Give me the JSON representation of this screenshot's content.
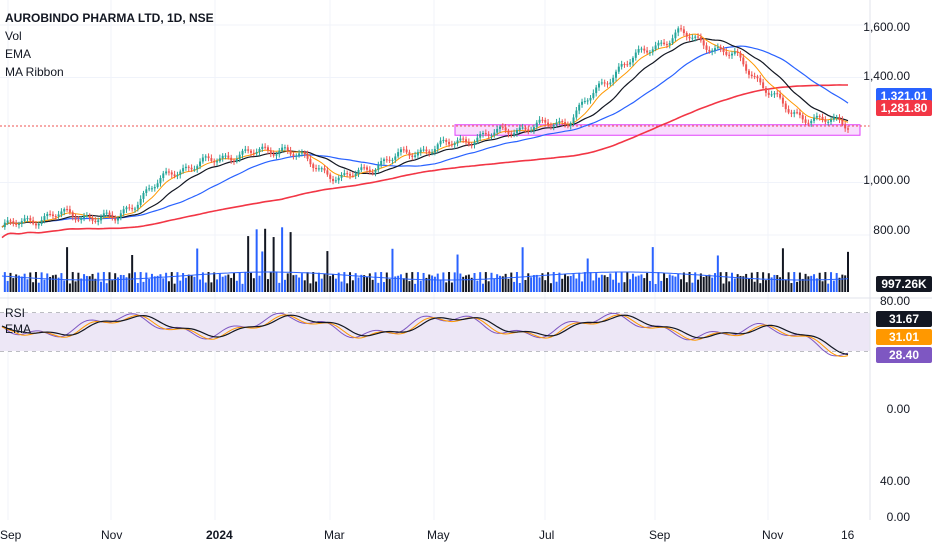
{
  "symbol": {
    "title": "AUROBINDO PHARMA LTD, 1D, NSE"
  },
  "indicators": [
    "Vol",
    "EMA",
    "MA Ribbon"
  ],
  "rsi_legend": [
    "RSI",
    "EMA"
  ],
  "price_axis": [
    "1,600.00",
    "1,400.00",
    "1,000.00",
    "800.00"
  ],
  "rsi_axis": [
    "80.00",
    "0.00",
    "40.00",
    "0.00"
  ],
  "time_axis": [
    {
      "label": "Sep",
      "bold": false
    },
    {
      "label": "Nov",
      "bold": false
    },
    {
      "label": "2024",
      "bold": true
    },
    {
      "label": "Mar",
      "bold": false
    },
    {
      "label": "May",
      "bold": false
    },
    {
      "label": "Jul",
      "bold": false
    },
    {
      "label": "Sep",
      "bold": false
    },
    {
      "label": "Nov",
      "bold": false
    },
    {
      "label": "16",
      "bold": false
    }
  ],
  "tags": {
    "price_ma_blue": "1,321.01",
    "price_ma_red": "1,281.80",
    "volume": "997.26K",
    "rsi_a": "31.67",
    "rsi_b": "31.01",
    "rsi_c": "28.40"
  },
  "colors": {
    "up": "#26a69a",
    "down": "#ef5350",
    "ma_blue": "#2962ff",
    "ma_red": "#f23645",
    "ma_black": "#131722",
    "ema_orange": "#ff9800",
    "rsi_purple": "#7e57c2",
    "rsi_band": "#ede7f6",
    "zone": "#e040fb"
  },
  "chart_data": {
    "type": "candlestick",
    "title": "AUROBINDO PHARMA LTD, 1D, NSE",
    "x_labels": [
      "Sep",
      "Nov",
      "2024",
      "Mar",
      "May",
      "Jul",
      "Sep",
      "Nov",
      "16"
    ],
    "close_path": [
      {
        "x": "Sep 2023",
        "y": 830
      },
      {
        "x": "Oct 2023",
        "y": 880
      },
      {
        "x": "Nov 2023",
        "y": 860
      },
      {
        "x": "Dec 2023",
        "y": 1040
      },
      {
        "x": "Jan 2024",
        "y": 1100
      },
      {
        "x": "Feb 2024",
        "y": 1130
      },
      {
        "x": "Mar 2024",
        "y": 1010
      },
      {
        "x": "Apr 2024",
        "y": 1100
      },
      {
        "x": "May 2024",
        "y": 1150
      },
      {
        "x": "Jun 2024",
        "y": 1200
      },
      {
        "x": "Jul 2024",
        "y": 1230
      },
      {
        "x": "Aug 2024",
        "y": 1450
      },
      {
        "x": "Sep 2024",
        "y": 1570
      },
      {
        "x": "Oct 2024",
        "y": 1480
      },
      {
        "x": "Nov 2024",
        "y": 1260
      },
      {
        "x": "Dec 2024",
        "y": 1220
      }
    ],
    "price_range": [
      600,
      1700
    ],
    "support_zone": [
      1180,
      1220
    ],
    "last": {
      "ma_blue": 1321.01,
      "ma_red": 1281.8,
      "volume": "997.26K"
    },
    "rsi": {
      "levels": [
        70,
        30
      ],
      "last": [
        31.67,
        31.01,
        28.4
      ]
    }
  }
}
